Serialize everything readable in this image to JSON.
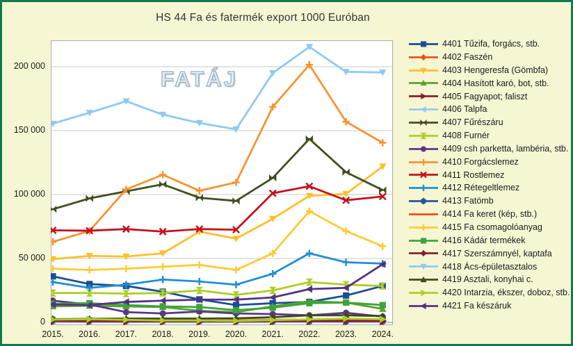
{
  "title": "HS 44 Fa és fatermék export 1000 Euróban",
  "watermark": "FATÁJ",
  "palette": {
    "frame_border": "#0f7a4e",
    "background": "#f6f6d3",
    "plot_background": "#ffffff",
    "gridline": "#c9c9c9",
    "axis_line": "#8c8c8c",
    "text": "#1a1a1a"
  },
  "chart_data": {
    "type": "line",
    "title": "HS 44 Fa és fatermék export 1000 Euróban",
    "xlabel": "",
    "ylabel": "",
    "x": [
      "2015.",
      "2016.",
      "2017.",
      "2018.",
      "2019.",
      "2020.",
      "2021.",
      "2022.",
      "2023.",
      "2024."
    ],
    "ylim": [
      0,
      220000
    ],
    "yticks": [
      0,
      50000,
      100000,
      150000,
      200000
    ],
    "ytick_labels": [
      "0",
      "50 000",
      "100 000",
      "150 000",
      "200 000"
    ],
    "grid": true,
    "legend_position": "right",
    "series": [
      {
        "code": "4401",
        "label": "4401 Tűzifa, forgács, stb.",
        "color": "#1b4f91",
        "marker": "square",
        "values": [
          36000,
          30000,
          28500,
          24000,
          18000,
          13500,
          15000,
          16000,
          21000,
          28500
        ]
      },
      {
        "code": "4402",
        "label": "4402 Faszén",
        "color": "#e8551c",
        "marker": "diamond",
        "values": [
          1500,
          1300,
          1200,
          1200,
          1300,
          1600,
          2000,
          2200,
          2800,
          2400
        ]
      },
      {
        "code": "4403",
        "label": "4403 Hengeresfa (Gömbfa)",
        "color": "#fdc02a",
        "marker": "tri-down",
        "values": [
          49500,
          52000,
          51500,
          54000,
          71000,
          65500,
          81000,
          99000,
          100500,
          122000
        ]
      },
      {
        "code": "4404",
        "label": "4404 Hasított karó, bot, stb.",
        "color": "#55a42c",
        "marker": "tri-up",
        "values": [
          12500,
          13000,
          12500,
          12000,
          9000,
          8000,
          12500,
          16500,
          15500,
          10500
        ]
      },
      {
        "code": "4405",
        "label": "4405 Fagyapot; faliszt",
        "color": "#8e1b27",
        "marker": "tri-right",
        "values": [
          400,
          350,
          300,
          300,
          300,
          300,
          400,
          500,
          500,
          400
        ]
      },
      {
        "code": "4406",
        "label": "4406 Talpfa",
        "color": "#92cdf5",
        "marker": "tri-left",
        "values": [
          500,
          400,
          400,
          300,
          300,
          300,
          400,
          400,
          400,
          400
        ]
      },
      {
        "code": "4407",
        "label": "4407 Fűrészáru",
        "color": "#404f1d",
        "marker": "bowtie",
        "values": [
          88500,
          97000,
          102500,
          108000,
          97500,
          95000,
          113000,
          143500,
          117500,
          103500
        ]
      },
      {
        "code": "4408",
        "label": "4408 Furnér",
        "color": "#aecd27",
        "marker": "hourglass",
        "values": [
          23000,
          23000,
          22500,
          23000,
          25000,
          21500,
          25000,
          31500,
          29500,
          28500
        ]
      },
      {
        "code": "4409",
        "label": "4409 csh parketta, lambéria, stb.",
        "color": "#5b3787",
        "marker": "circle",
        "values": [
          17000,
          14000,
          8000,
          7000,
          8500,
          7000,
          6500,
          5500,
          7500,
          4500
        ]
      },
      {
        "code": "4410",
        "label": "4410 Forgácslemez",
        "color": "#f79430",
        "marker": "plus",
        "values": [
          63000,
          71500,
          104000,
          115500,
          103000,
          109500,
          168500,
          201500,
          157000,
          140500
        ]
      },
      {
        "code": "4411",
        "label": "4411 Rostlemez",
        "color": "#c2131c",
        "marker": "x",
        "values": [
          72000,
          71700,
          73000,
          71000,
          73000,
          72500,
          101000,
          106500,
          95500,
          98500
        ]
      },
      {
        "code": "4412",
        "label": "4412 Rétegeltlemez",
        "color": "#1e8fd5",
        "marker": "plus",
        "values": [
          31500,
          27000,
          29500,
          33500,
          32000,
          29500,
          38000,
          54000,
          47000,
          46000
        ]
      },
      {
        "code": "4413",
        "label": "4413 Fatömb",
        "color": "#24579f",
        "marker": "star",
        "values": [
          2500,
          2000,
          2000,
          1500,
          1200,
          1000,
          1000,
          800,
          800,
          1000
        ]
      },
      {
        "code": "4414",
        "label": "4414 Fa keret (kép, stb.)",
        "color": "#f04e11",
        "marker": "none",
        "values": [
          1800,
          1600,
          1500,
          1500,
          1500,
          1500,
          1700,
          1800,
          2000,
          1500
        ]
      },
      {
        "code": "4415",
        "label": "4415 Fa csomagolóanyag",
        "color": "#fdcb35",
        "marker": "plus",
        "values": [
          42000,
          41000,
          42000,
          43500,
          45000,
          41000,
          54000,
          87000,
          71500,
          59500
        ]
      },
      {
        "code": "4416",
        "label": "4416 Kádár termékek",
        "color": "#3fa33c",
        "marker": "square",
        "values": [
          14500,
          15000,
          13500,
          12500,
          12000,
          9500,
          11500,
          15000,
          15500,
          13500
        ]
      },
      {
        "code": "4417",
        "label": "4417 Szerszámnyél, kaptafa",
        "color": "#871f33",
        "marker": "diamond",
        "values": [
          1000,
          900,
          900,
          800,
          800,
          800,
          900,
          1000,
          1100,
          900
        ]
      },
      {
        "code": "4418",
        "label": "4418 Ács-épületasztalos",
        "color": "#8ec9f4",
        "marker": "tri-down",
        "values": [
          155500,
          164000,
          173000,
          162500,
          156000,
          151000,
          195000,
          215500,
          196000,
          195500
        ]
      },
      {
        "code": "4419",
        "label": "4419 Asztali, konyhai c.",
        "color": "#3c4b18",
        "marker": "tri-up",
        "values": [
          2500,
          2800,
          3000,
          3000,
          3000,
          3200,
          4000,
          5500,
          5500,
          5000
        ]
      },
      {
        "code": "4420",
        "label": "4420 Intarzia, ékszer, doboz, stb.",
        "color": "#aecd27",
        "marker": "tri-right",
        "values": [
          2200,
          2500,
          2000,
          1500,
          1500,
          1200,
          1800,
          2300,
          3000,
          2500
        ]
      },
      {
        "code": "4421",
        "label": "4421 Fa készáruk",
        "color": "#533286",
        "marker": "tri-left",
        "values": [
          14000,
          13500,
          16000,
          17000,
          17800,
          17800,
          19500,
          26000,
          27000,
          45500
        ]
      }
    ]
  }
}
